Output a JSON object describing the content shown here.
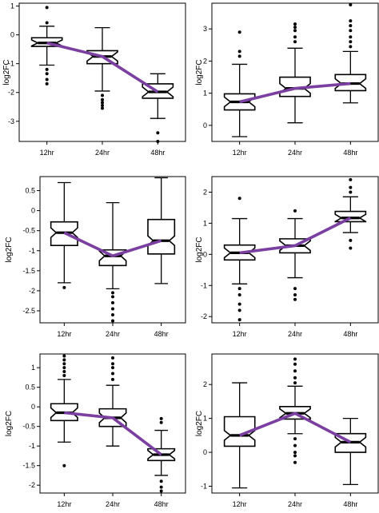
{
  "colors": {
    "trend": "#7a3fa0",
    "box_fill": "#ffffff",
    "ink": "#000000"
  },
  "chart_data": [
    {
      "type": "boxplot",
      "ylabel": "log2FC",
      "categories": [
        "12hr",
        "24hr",
        "48hr"
      ],
      "ylim": [
        -3.7,
        1.1
      ],
      "yticks": [
        1,
        0,
        -1,
        -2,
        -3
      ],
      "boxes": [
        {
          "q1": -0.4,
          "median": -0.28,
          "q3": -0.1,
          "whisker_low": -1.05,
          "whisker_high": 0.3,
          "outliers": [
            0.95,
            0.42,
            -1.2,
            -1.35,
            -1.55,
            -1.7
          ]
        },
        {
          "q1": -1.0,
          "median": -0.75,
          "q3": -0.55,
          "whisker_low": -1.95,
          "whisker_high": 0.25,
          "outliers": [
            -2.1,
            -2.25,
            -2.35,
            -2.45,
            -2.55
          ]
        },
        {
          "q1": -2.2,
          "median": -1.98,
          "q3": -1.7,
          "whisker_low": -2.9,
          "whisker_high": -1.35,
          "outliers": [
            -3.4,
            -3.7
          ]
        }
      ],
      "trend": [
        -0.28,
        -0.75,
        -1.98
      ]
    },
    {
      "type": "boxplot",
      "ylabel": "log2FC",
      "categories": [
        "12hr",
        "24hr",
        "48hr"
      ],
      "ylim": [
        -0.5,
        3.8
      ],
      "yticks": [
        3,
        2,
        1,
        0
      ],
      "boxes": [
        {
          "q1": 0.48,
          "median": 0.73,
          "q3": 0.98,
          "whisker_low": -0.35,
          "whisker_high": 1.9,
          "outliers": [
            2.15,
            2.3,
            2.9
          ]
        },
        {
          "q1": 0.9,
          "median": 1.15,
          "q3": 1.5,
          "whisker_low": 0.08,
          "whisker_high": 2.4,
          "outliers": [
            2.6,
            2.75,
            2.95,
            3.05,
            3.15
          ]
        },
        {
          "q1": 1.08,
          "median": 1.3,
          "q3": 1.58,
          "whisker_low": 0.7,
          "whisker_high": 2.3,
          "outliers": [
            2.45,
            2.6,
            2.75,
            2.95,
            3.1,
            3.25,
            3.75
          ]
        }
      ],
      "trend": [
        0.73,
        1.15,
        1.3
      ]
    },
    {
      "type": "boxplot",
      "ylabel": "log2FC",
      "categories": [
        "12hr",
        "24hr",
        "48hr"
      ],
      "ylim": [
        -2.8,
        0.85
      ],
      "yticks": [
        0.5,
        0.0,
        -0.5,
        -1.0,
        -1.5,
        -2.0,
        -2.5
      ],
      "boxes": [
        {
          "q1": -0.87,
          "median": -0.55,
          "q3": -0.28,
          "whisker_low": -1.8,
          "whisker_high": 0.7,
          "outliers": [
            -1.92
          ]
        },
        {
          "q1": -1.37,
          "median": -1.13,
          "q3": -0.98,
          "whisker_low": -1.95,
          "whisker_high": 0.2,
          "outliers": [
            -2.05,
            -2.15,
            -2.3,
            -2.45,
            -2.6,
            -2.75
          ]
        },
        {
          "q1": -1.08,
          "median": -0.75,
          "q3": -0.22,
          "whisker_low": -1.82,
          "whisker_high": 0.82,
          "outliers": []
        }
      ],
      "trend": [
        -0.55,
        -1.13,
        -0.75
      ]
    },
    {
      "type": "boxplot",
      "ylabel": "log2FC",
      "categories": [
        "12hr",
        "24hr",
        "48hr"
      ],
      "ylim": [
        -2.2,
        2.5
      ],
      "yticks": [
        2,
        1,
        0,
        -1,
        -2
      ],
      "boxes": [
        {
          "q1": -0.18,
          "median": 0.05,
          "q3": 0.3,
          "whisker_low": -0.95,
          "whisker_high": 1.15,
          "outliers": [
            1.8,
            -1.1,
            -1.3,
            -1.6,
            -1.8,
            -2.1
          ]
        },
        {
          "q1": 0.05,
          "median": 0.28,
          "q3": 0.5,
          "whisker_low": -0.75,
          "whisker_high": 1.15,
          "outliers": [
            1.4,
            -1.1,
            -1.3,
            -1.45
          ]
        },
        {
          "q1": 1.05,
          "median": 1.17,
          "q3": 1.38,
          "whisker_low": 0.7,
          "whisker_high": 1.85,
          "outliers": [
            2.0,
            2.15,
            2.4,
            0.45,
            0.2
          ]
        }
      ],
      "trend": [
        0.05,
        0.28,
        1.17
      ]
    },
    {
      "type": "boxplot",
      "ylabel": "log2FC",
      "categories": [
        "12hr",
        "24hr",
        "48hr"
      ],
      "ylim": [
        -2.2,
        1.35
      ],
      "yticks": [
        1.0,
        0.5,
        0.0,
        -0.5,
        -1.0,
        -1.5,
        -2.0
      ],
      "boxes": [
        {
          "q1": -0.35,
          "median": -0.15,
          "q3": 0.08,
          "whisker_low": -0.9,
          "whisker_high": 0.7,
          "outliers": [
            0.8,
            0.9,
            1.0,
            1.1,
            1.2,
            1.3,
            -1.5
          ]
        },
        {
          "q1": -0.5,
          "median": -0.28,
          "q3": -0.05,
          "whisker_low": -1.0,
          "whisker_high": 0.55,
          "outliers": [
            0.7,
            0.85,
            1.0,
            1.1,
            1.25
          ]
        },
        {
          "q1": -1.37,
          "median": -1.22,
          "q3": -1.07,
          "whisker_low": -1.75,
          "whisker_high": -0.6,
          "outliers": [
            -0.4,
            -0.3,
            -1.9,
            -2.05,
            -2.15
          ]
        }
      ],
      "trend": [
        -0.15,
        -0.28,
        -1.22
      ]
    },
    {
      "type": "boxplot",
      "ylabel": "log2FC",
      "categories": [
        "12hr",
        "24hr",
        "48hr"
      ],
      "ylim": [
        -1.2,
        2.9
      ],
      "yticks": [
        2,
        1,
        0,
        -1
      ],
      "boxes": [
        {
          "q1": 0.18,
          "median": 0.5,
          "q3": 1.05,
          "whisker_low": -1.05,
          "whisker_high": 2.05,
          "outliers": []
        },
        {
          "q1": 0.98,
          "median": 1.15,
          "q3": 1.35,
          "whisker_low": 0.55,
          "whisker_high": 1.95,
          "outliers": [
            2.05,
            2.2,
            2.4,
            2.6,
            2.75,
            0.4,
            0.2,
            0.0,
            -0.1,
            -0.3
          ]
        },
        {
          "q1": 0.0,
          "median": 0.3,
          "q3": 0.55,
          "whisker_low": -0.95,
          "whisker_high": 1.0,
          "outliers": []
        }
      ],
      "trend": [
        0.5,
        1.15,
        0.3
      ]
    }
  ]
}
